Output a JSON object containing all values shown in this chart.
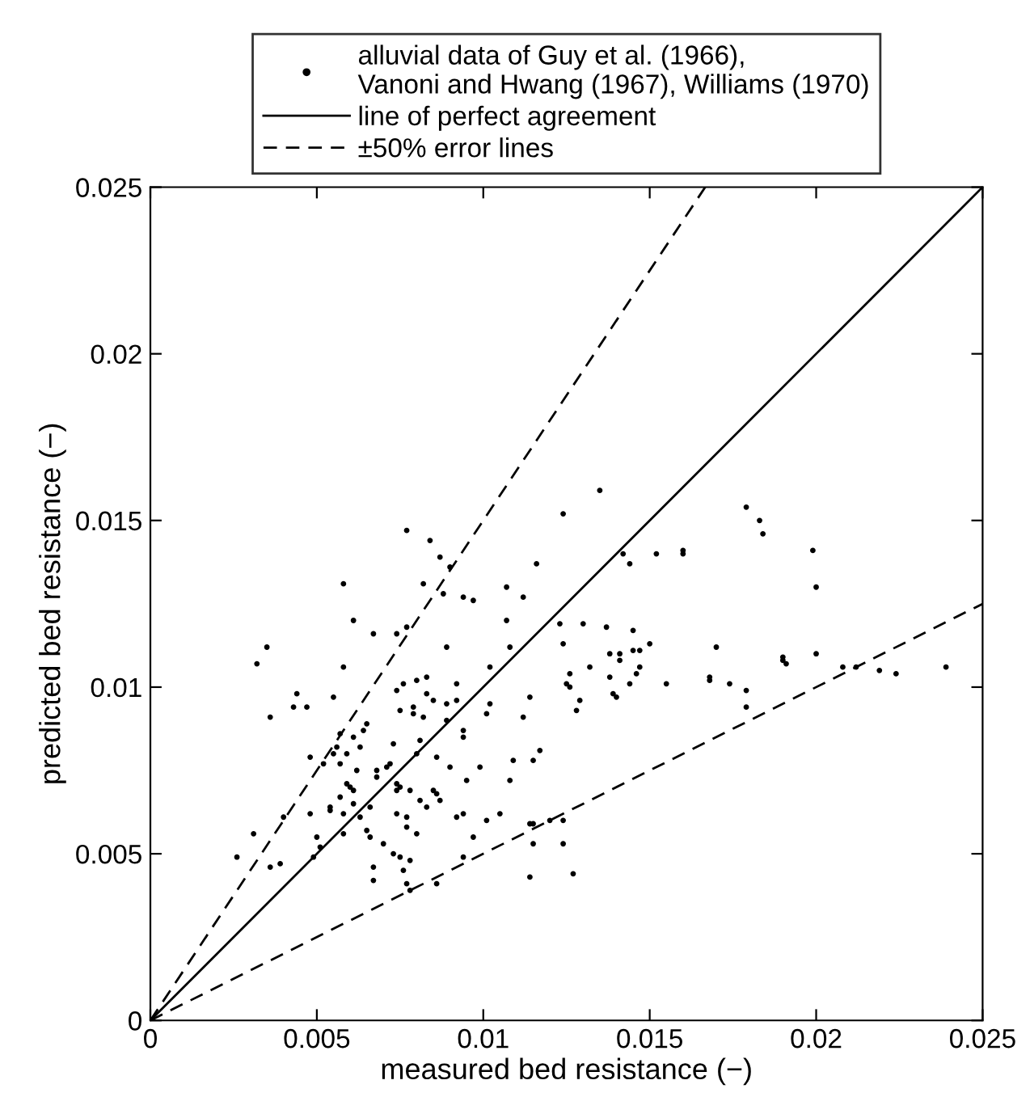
{
  "chart_data": {
    "type": "scatter",
    "xlabel": "measured bed resistance (−)",
    "ylabel": "predicted bed resistance (−)",
    "xlim": [
      0,
      0.025
    ],
    "ylim": [
      0,
      0.025
    ],
    "xticks": [
      0,
      0.005,
      0.01,
      0.015,
      0.02,
      0.025
    ],
    "yticks": [
      0,
      0.005,
      0.01,
      0.015,
      0.02,
      0.025
    ],
    "grid": false,
    "legend": "top",
    "series": [
      {
        "name": "alluvial data of Guy et al. (1966),\nVanoni and Hwang (1967), Williams (1970)",
        "marker": "circle",
        "color": "#000000",
        "x": [
          0.0077,
          0.0084,
          0.0087,
          0.009,
          0.0058,
          0.0082,
          0.0088,
          0.0094,
          0.0061,
          0.0067,
          0.0074,
          0.0077,
          0.0035,
          0.0032,
          0.0089,
          0.0058,
          0.0044,
          0.0043,
          0.0047,
          0.0036,
          0.0055,
          0.0074,
          0.0076,
          0.008,
          0.0083,
          0.0083,
          0.0085,
          0.0092,
          0.0075,
          0.0079,
          0.0079,
          0.0082,
          0.0089,
          0.0092,
          0.0065,
          0.0064,
          0.0057,
          0.0061,
          0.0056,
          0.0055,
          0.0059,
          0.0063,
          0.0048,
          0.0052,
          0.0057,
          0.0062,
          0.0073,
          0.0081,
          0.008,
          0.0071,
          0.0068,
          0.0072,
          0.0068,
          0.0059,
          0.006,
          0.0061,
          0.0057,
          0.0061,
          0.0054,
          0.0054,
          0.0048,
          0.0058,
          0.0063,
          0.0066,
          0.0074,
          0.0075,
          0.0074,
          0.0078,
          0.0081,
          0.0085,
          0.0086,
          0.0087,
          0.0083,
          0.0074,
          0.0077,
          0.008,
          0.0077,
          0.004,
          0.005,
          0.0058,
          0.0051,
          0.0049,
          0.0031,
          0.0026,
          0.0036,
          0.0039,
          0.0065,
          0.0066,
          0.007,
          0.0073,
          0.0075,
          0.0078,
          0.0076,
          0.0067,
          0.0067,
          0.0077,
          0.0094,
          0.0095,
          0.0094,
          0.0094,
          0.009,
          0.0089,
          0.0086,
          0.0092,
          0.0094,
          0.0135,
          0.0124,
          0.0142,
          0.0144,
          0.0152,
          0.016,
          0.016,
          0.0116,
          0.0107,
          0.0097,
          0.0112,
          0.0107,
          0.0123,
          0.013,
          0.0137,
          0.0145,
          0.015,
          0.0124,
          0.0108,
          0.0138,
          0.0141,
          0.0145,
          0.0147,
          0.0141,
          0.0147,
          0.0126,
          0.0132,
          0.0138,
          0.0146,
          0.0144,
          0.0155,
          0.0125,
          0.0126,
          0.0139,
          0.014,
          0.0129,
          0.0128,
          0.0102,
          0.0114,
          0.0102,
          0.0101,
          0.0112,
          0.0117,
          0.0115,
          0.0109,
          0.0099,
          0.0108,
          0.0101,
          0.0105,
          0.0114,
          0.0115,
          0.012,
          0.0124,
          0.0097,
          0.0115,
          0.0124,
          0.0114,
          0.0127,
          0.0183,
          0.0184,
          0.0199,
          0.02,
          0.017,
          0.0168,
          0.0168,
          0.0174,
          0.0179,
          0.0179,
          0.019,
          0.019,
          0.0191,
          0.02,
          0.0208,
          0.0212,
          0.0219,
          0.0224,
          0.0239,
          0.0179,
          0.0078,
          0.0086
        ],
        "values": [
          0.0147,
          0.0144,
          0.0139,
          0.0136,
          0.0131,
          0.0131,
          0.0128,
          0.0127,
          0.012,
          0.0116,
          0.0116,
          0.0118,
          0.0112,
          0.0107,
          0.0112,
          0.0106,
          0.0098,
          0.0094,
          0.0094,
          0.0091,
          0.0097,
          0.0099,
          0.0101,
          0.0102,
          0.0103,
          0.0098,
          0.0096,
          0.0101,
          0.0093,
          0.0094,
          0.0092,
          0.0091,
          0.0095,
          0.0096,
          0.0089,
          0.0087,
          0.0086,
          0.0085,
          0.0082,
          0.008,
          0.008,
          0.0082,
          0.0079,
          0.0077,
          0.0077,
          0.0075,
          0.0083,
          0.0084,
          0.008,
          0.0076,
          0.0075,
          0.0077,
          0.0073,
          0.0071,
          0.007,
          0.0069,
          0.0067,
          0.0065,
          0.0064,
          0.0063,
          0.0062,
          0.0062,
          0.0061,
          0.0064,
          0.0071,
          0.007,
          0.0069,
          0.0069,
          0.0066,
          0.0069,
          0.0068,
          0.0066,
          0.0064,
          0.0062,
          0.0061,
          0.0056,
          0.0058,
          0.0061,
          0.0055,
          0.0056,
          0.0052,
          0.0049,
          0.0056,
          0.0049,
          0.0046,
          0.0047,
          0.0057,
          0.0055,
          0.0053,
          0.005,
          0.0049,
          0.0048,
          0.0045,
          0.0046,
          0.0042,
          0.0041,
          0.0049,
          0.0072,
          0.0085,
          0.0087,
          0.0076,
          0.009,
          0.0079,
          0.0061,
          0.0062,
          0.0159,
          0.0152,
          0.014,
          0.0137,
          0.014,
          0.0141,
          0.014,
          0.0137,
          0.013,
          0.0126,
          0.0127,
          0.012,
          0.0119,
          0.0119,
          0.0118,
          0.0117,
          0.0113,
          0.0113,
          0.0112,
          0.011,
          0.011,
          0.0111,
          0.0111,
          0.0108,
          0.0106,
          0.0104,
          0.0106,
          0.0103,
          0.0104,
          0.0101,
          0.0101,
          0.0101,
          0.01,
          0.0098,
          0.0097,
          0.0096,
          0.0093,
          0.0106,
          0.0097,
          0.0095,
          0.0092,
          0.0091,
          0.0081,
          0.0078,
          0.0078,
          0.0076,
          0.0072,
          0.006,
          0.0062,
          0.0059,
          0.0059,
          0.006,
          0.006,
          0.0055,
          0.0053,
          0.0053,
          0.0043,
          0.0044,
          0.015,
          0.0146,
          0.0141,
          0.013,
          0.0112,
          0.0103,
          0.0102,
          0.0101,
          0.0099,
          0.0094,
          0.0109,
          0.0108,
          0.0107,
          0.011,
          0.0106,
          0.0106,
          0.0105,
          0.0104,
          0.0106,
          0.0154,
          0.0039,
          0.0041
        ]
      },
      {
        "name": "line of perfect agreement",
        "type": "line",
        "line_style": "solid",
        "marker": "none",
        "color": "#000000",
        "x": [
          0,
          0.025
        ],
        "values": [
          0,
          0.025
        ]
      },
      {
        "name": "±50% error lines",
        "type": "line",
        "line_style": "dashed",
        "marker": "none",
        "color": "#000000",
        "x": [
          0,
          0.0166667
        ],
        "values": [
          0,
          0.025
        ]
      },
      {
        "type": "line",
        "line_style": "dashed",
        "marker": "none",
        "color": "#000000",
        "x": [
          0,
          0.025
        ],
        "values": [
          0,
          0.0125
        ]
      }
    ]
  }
}
